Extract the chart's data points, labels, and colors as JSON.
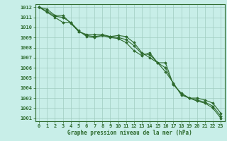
{
  "hours": [
    0,
    1,
    2,
    3,
    4,
    5,
    6,
    7,
    8,
    9,
    10,
    11,
    12,
    13,
    14,
    15,
    16,
    17,
    18,
    19,
    20,
    21,
    22,
    23
  ],
  "line1": [
    1012.0,
    1011.8,
    1011.2,
    1011.2,
    1010.4,
    1009.6,
    1009.3,
    1009.3,
    1009.3,
    1009.1,
    1009.2,
    1009.1,
    1008.5,
    1007.5,
    1007.0,
    1006.5,
    1005.6,
    1004.5,
    1003.3,
    1003.0,
    1002.7,
    1002.5,
    1002.0,
    1001.0
  ],
  "line2": [
    1012.0,
    1011.5,
    1011.0,
    1010.5,
    1010.5,
    1009.7,
    1009.1,
    1009.0,
    1009.2,
    1009.0,
    1008.9,
    1008.5,
    1007.7,
    1007.2,
    1007.5,
    1006.5,
    1006.5,
    1004.3,
    1003.5,
    1003.0,
    1003.0,
    1002.8,
    1002.5,
    1001.5
  ],
  "line3": [
    1012.0,
    1011.6,
    1011.1,
    1011.0,
    1010.5,
    1009.6,
    1009.2,
    1009.1,
    1009.2,
    1009.1,
    1009.0,
    1008.8,
    1008.2,
    1007.4,
    1007.3,
    1006.5,
    1006.0,
    1004.4,
    1003.4,
    1003.0,
    1002.8,
    1002.6,
    1002.2,
    1001.2
  ],
  "ylim_min": 1000.7,
  "ylim_max": 1012.3,
  "yticks": [
    1001,
    1002,
    1003,
    1004,
    1005,
    1006,
    1007,
    1008,
    1009,
    1010,
    1011,
    1012
  ],
  "line_color": "#2d6a2d",
  "bg_color": "#c8eee8",
  "grid_color": "#a0ccc0",
  "xlabel": "Graphe pression niveau de la mer (hPa)",
  "marker": "D",
  "marker_size": 1.8,
  "linewidth": 0.8,
  "tick_fontsize": 5.0,
  "xlabel_fontsize": 5.5
}
